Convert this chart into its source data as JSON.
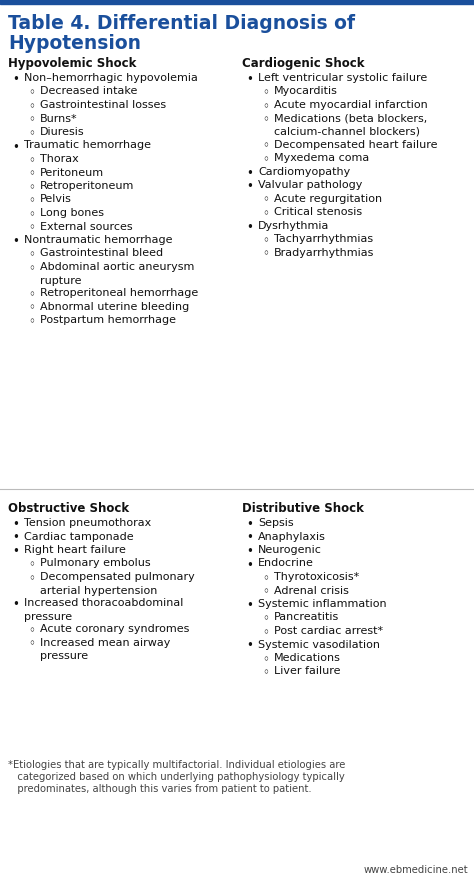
{
  "title_line1": "Table 4. Differential Diagnosis of",
  "title_line2": "Hypotension",
  "title_color": "#1a4f9c",
  "title_bar_color": "#1a4f9c",
  "background_color": "#ffffff",
  "section_color": "#111111",
  "text_color": "#111111",
  "footnote_color": "#444444",
  "website_color": "#444444",
  "col1_header": "Hypovolemic Shock",
  "col2_header": "Cardiogenic Shock",
  "col3_header": "Obstructive Shock",
  "col4_header": "Distributive Shock",
  "col1_items": [
    {
      "level": 1,
      "text": "Non–hemorrhagic hypovolemia"
    },
    {
      "level": 2,
      "text": "Decreased intake"
    },
    {
      "level": 2,
      "text": "Gastrointestinal losses"
    },
    {
      "level": 2,
      "text": "Burns*"
    },
    {
      "level": 2,
      "text": "Diuresis"
    },
    {
      "level": 1,
      "text": "Traumatic hemorrhage"
    },
    {
      "level": 2,
      "text": "Thorax"
    },
    {
      "level": 2,
      "text": "Peritoneum"
    },
    {
      "level": 2,
      "text": "Retroperitoneum"
    },
    {
      "level": 2,
      "text": "Pelvis"
    },
    {
      "level": 2,
      "text": "Long bones"
    },
    {
      "level": 2,
      "text": "External sources"
    },
    {
      "level": 1,
      "text": "Nontraumatic hemorrhage"
    },
    {
      "level": 2,
      "text": "Gastrointestinal bleed"
    },
    {
      "level": 2,
      "text": "Abdominal aortic aneurysm\nrupture"
    },
    {
      "level": 2,
      "text": "Retroperitoneal hemorrhage"
    },
    {
      "level": 2,
      "text": "Abnormal uterine bleeding"
    },
    {
      "level": 2,
      "text": "Postpartum hemorrhage"
    }
  ],
  "col2_items": [
    {
      "level": 1,
      "text": "Left ventricular systolic failure"
    },
    {
      "level": 2,
      "text": "Myocarditis"
    },
    {
      "level": 2,
      "text": "Acute myocardial infarction"
    },
    {
      "level": 2,
      "text": "Medications (beta blockers,\ncalcium-channel blockers)"
    },
    {
      "level": 2,
      "text": "Decompensated heart failure"
    },
    {
      "level": 2,
      "text": "Myxedema coma"
    },
    {
      "level": 1,
      "text": "Cardiomyopathy"
    },
    {
      "level": 1,
      "text": "Valvular pathology"
    },
    {
      "level": 2,
      "text": "Acute regurgitation"
    },
    {
      "level": 2,
      "text": "Critical stenosis"
    },
    {
      "level": 1,
      "text": "Dysrhythmia"
    },
    {
      "level": 2,
      "text": "Tachyarrhythmias"
    },
    {
      "level": 2,
      "text": "Bradyarrhythmias"
    }
  ],
  "col3_items": [
    {
      "level": 1,
      "text": "Tension pneumothorax"
    },
    {
      "level": 1,
      "text": "Cardiac tamponade"
    },
    {
      "level": 1,
      "text": "Right heart failure"
    },
    {
      "level": 2,
      "text": "Pulmonary embolus"
    },
    {
      "level": 2,
      "text": "Decompensated pulmonary\narterial hypertension"
    },
    {
      "level": 1,
      "text": "Increased thoracoabdominal\npressure"
    },
    {
      "level": 2,
      "text": "Acute coronary syndromes"
    },
    {
      "level": 2,
      "text": "Increased mean airway\npressure"
    }
  ],
  "col4_items": [
    {
      "level": 1,
      "text": "Sepsis"
    },
    {
      "level": 1,
      "text": "Anaphylaxis"
    },
    {
      "level": 1,
      "text": "Neurogenic"
    },
    {
      "level": 1,
      "text": "Endocrine"
    },
    {
      "level": 2,
      "text": "Thyrotoxicosis*"
    },
    {
      "level": 2,
      "text": "Adrenal crisis"
    },
    {
      "level": 1,
      "text": "Systemic inflammation"
    },
    {
      "level": 2,
      "text": "Pancreatitis"
    },
    {
      "level": 2,
      "text": "Post cardiac arrest*"
    },
    {
      "level": 1,
      "text": "Systemic vasodilation"
    },
    {
      "level": 2,
      "text": "Medications"
    },
    {
      "level": 2,
      "text": "Liver failure"
    }
  ],
  "footnote_line1": "*Etiologies that are typically multifactorial. Individual etiologies are",
  "footnote_line2": "   categorized based on which underlying pathophysiology typically",
  "footnote_line3": "   predominates, although this varies from patient to patient.",
  "website": "www.ebmedicine.net",
  "fig_width": 4.74,
  "fig_height": 8.79,
  "dpi": 100
}
